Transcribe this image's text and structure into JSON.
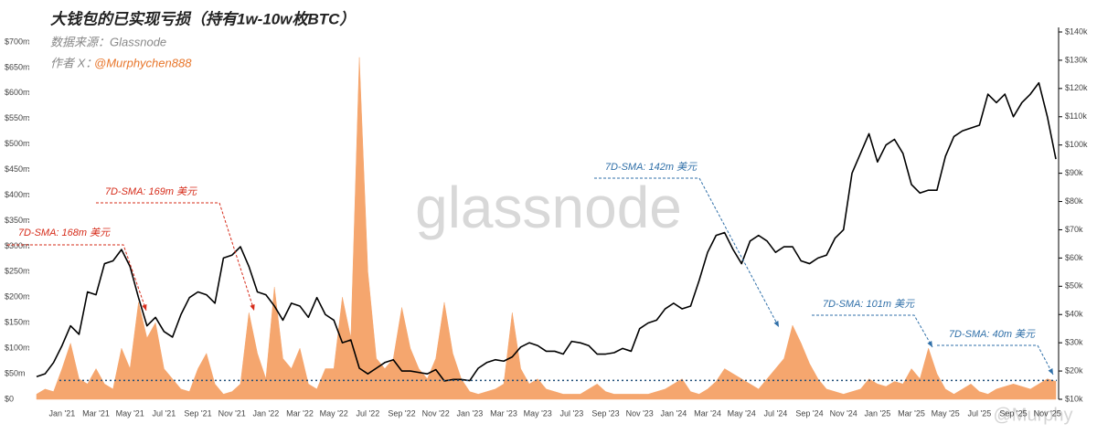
{
  "chart_data": {
    "type": "area_line",
    "title": "大钱包的已实现亏损（持有1w-10w枚BTC）",
    "subtitle": "数据来源：Glassnode",
    "author_prefix": "作者 X：",
    "author_handle": "@Murphychen888",
    "watermark": "glassnode",
    "watermark2": "@Murphy",
    "categories": [
      null,
      null,
      null,
      "Jan '21",
      null,
      null,
      null,
      "Mar '21",
      null,
      null,
      null,
      "May '21",
      null,
      null,
      null,
      "Jul '21",
      null,
      null,
      null,
      "Sep '21",
      null,
      null,
      null,
      "Nov '21",
      null,
      null,
      null,
      "Jan '22",
      null,
      null,
      null,
      "Mar '22",
      null,
      null,
      null,
      "May '22",
      null,
      null,
      null,
      "Jul '22",
      null,
      null,
      null,
      "Sep '22",
      null,
      null,
      null,
      "Nov '22",
      null,
      null,
      null,
      "Jan '23",
      null,
      null,
      null,
      "Mar '23",
      null,
      null,
      null,
      "May '23",
      null,
      null,
      null,
      "Jul '23",
      null,
      null,
      null,
      "Sep '23",
      null,
      null,
      null,
      "Nov '23",
      null,
      null,
      null,
      "Jan '24",
      null,
      null,
      null,
      "Mar '24",
      null,
      null,
      null,
      "May '24",
      null,
      null,
      null,
      "Jul '24",
      null,
      null,
      null,
      "Sep '24",
      null,
      null,
      null,
      "Nov '24",
      null,
      null,
      null,
      "Jan '25",
      null,
      null,
      null,
      "Mar '25",
      null,
      null,
      null,
      "May '25",
      null,
      null,
      null,
      "Jul '25",
      null,
      null,
      null,
      "Sep '25",
      null,
      null,
      null,
      "Nov '25",
      null
    ],
    "series": [
      {
        "kind": "area",
        "color": "#f5a66e",
        "values": [
          10,
          20,
          15,
          60,
          110,
          40,
          30,
          60,
          30,
          20,
          100,
          60,
          190,
          120,
          150,
          60,
          40,
          20,
          15,
          60,
          90,
          30,
          10,
          15,
          30,
          170,
          90,
          40,
          220,
          80,
          60,
          100,
          30,
          20,
          60,
          60,
          200,
          120,
          670,
          250,
          80,
          60,
          80,
          180,
          100,
          60,
          40,
          80,
          190,
          90,
          40,
          15,
          10,
          15,
          20,
          30,
          170,
          60,
          30,
          40,
          20,
          15,
          10,
          10,
          10,
          20,
          30,
          15,
          10,
          10,
          10,
          10,
          10,
          15,
          20,
          30,
          40,
          15,
          10,
          20,
          35,
          60,
          50,
          40,
          30,
          20,
          40,
          60,
          80,
          145,
          110,
          70,
          40,
          20,
          15,
          10,
          15,
          20,
          40,
          30,
          25,
          35,
          30,
          60,
          40,
          100,
          50,
          20,
          10,
          20,
          30,
          15,
          10,
          20,
          25,
          30,
          25,
          20,
          30,
          40,
          35
        ]
      },
      {
        "kind": "line",
        "axis": "y2",
        "color": "#000000",
        "values": [
          18,
          19,
          23,
          29,
          36,
          33,
          48,
          47,
          58,
          59,
          63,
          57,
          46,
          36,
          39,
          34,
          32,
          40,
          46,
          48,
          47,
          44,
          60,
          61,
          64,
          57,
          48,
          47,
          43,
          38,
          44,
          43,
          39,
          46,
          40,
          38,
          30,
          31,
          21,
          19,
          21,
          23,
          24,
          20,
          20,
          19.5,
          19,
          20.5,
          16.5,
          17,
          17,
          16.6,
          21,
          23,
          24,
          23.5,
          25,
          28.5,
          30,
          29,
          27,
          27,
          26,
          30.5,
          30,
          29,
          26,
          26,
          26.5,
          28,
          27,
          35,
          37,
          38,
          42,
          44,
          42,
          43,
          52,
          62,
          68,
          69,
          63,
          58,
          66,
          68,
          66,
          62,
          64,
          64,
          59,
          58,
          60,
          61,
          67,
          70,
          90,
          97,
          104,
          94,
          100,
          102,
          97,
          86,
          83,
          84,
          84,
          96,
          103,
          105,
          106,
          107,
          118,
          115,
          118,
          110,
          115,
          118,
          122,
          110,
          95
        ]
      }
    ],
    "reference_line": 37,
    "reference_line_color": "#1f4e79",
    "ylim": [
      0,
      700
    ],
    "yticks": [
      {
        "value": 0,
        "label": "$0"
      },
      {
        "value": 50,
        "label": "$50m"
      },
      {
        "value": 100,
        "label": "$100m"
      },
      {
        "value": 150,
        "label": "$150m"
      },
      {
        "value": 200,
        "label": "$200m"
      },
      {
        "value": 250,
        "label": "$250m"
      },
      {
        "value": 300,
        "label": "$300m"
      },
      {
        "value": 350,
        "label": "$350m"
      },
      {
        "value": 400,
        "label": "$400m"
      },
      {
        "value": 450,
        "label": "$450m"
      },
      {
        "value": 500,
        "label": "$500m"
      },
      {
        "value": 550,
        "label": "$550m"
      },
      {
        "value": 600,
        "label": "$600m"
      },
      {
        "value": 650,
        "label": "$650m"
      },
      {
        "value": 700,
        "label": "$700m"
      }
    ],
    "y2lim": [
      10,
      140
    ],
    "y2ticks": [
      {
        "value": 10,
        "label": "$10k"
      },
      {
        "value": 20,
        "label": "$20k"
      },
      {
        "value": 30,
        "label": "$30k"
      },
      {
        "value": 40,
        "label": "$40k"
      },
      {
        "value": 50,
        "label": "$50k"
      },
      {
        "value": 60,
        "label": "$60k"
      },
      {
        "value": 70,
        "label": "$70k"
      },
      {
        "value": 80,
        "label": "$80k"
      },
      {
        "value": 90,
        "label": "$90k"
      },
      {
        "value": 100,
        "label": "$100k"
      },
      {
        "value": 110,
        "label": "$110k"
      },
      {
        "value": 120,
        "label": "$120k"
      },
      {
        "value": 130,
        "label": "$130k"
      },
      {
        "value": 140,
        "label": "$140k"
      }
    ],
    "annotations": [
      {
        "text": "7D-SMA: 168m 美元",
        "color": "#d62c1a"
      },
      {
        "text": "7D-SMA: 169m 美元",
        "color": "#d62c1a"
      },
      {
        "text": "7D-SMA: 142m 美元",
        "color": "#2f6fa8"
      },
      {
        "text": "7D-SMA: 101m 美元",
        "color": "#2f6fa8"
      },
      {
        "text": "7D-SMA: 40m 美元",
        "color": "#2f6fa8"
      }
    ]
  }
}
